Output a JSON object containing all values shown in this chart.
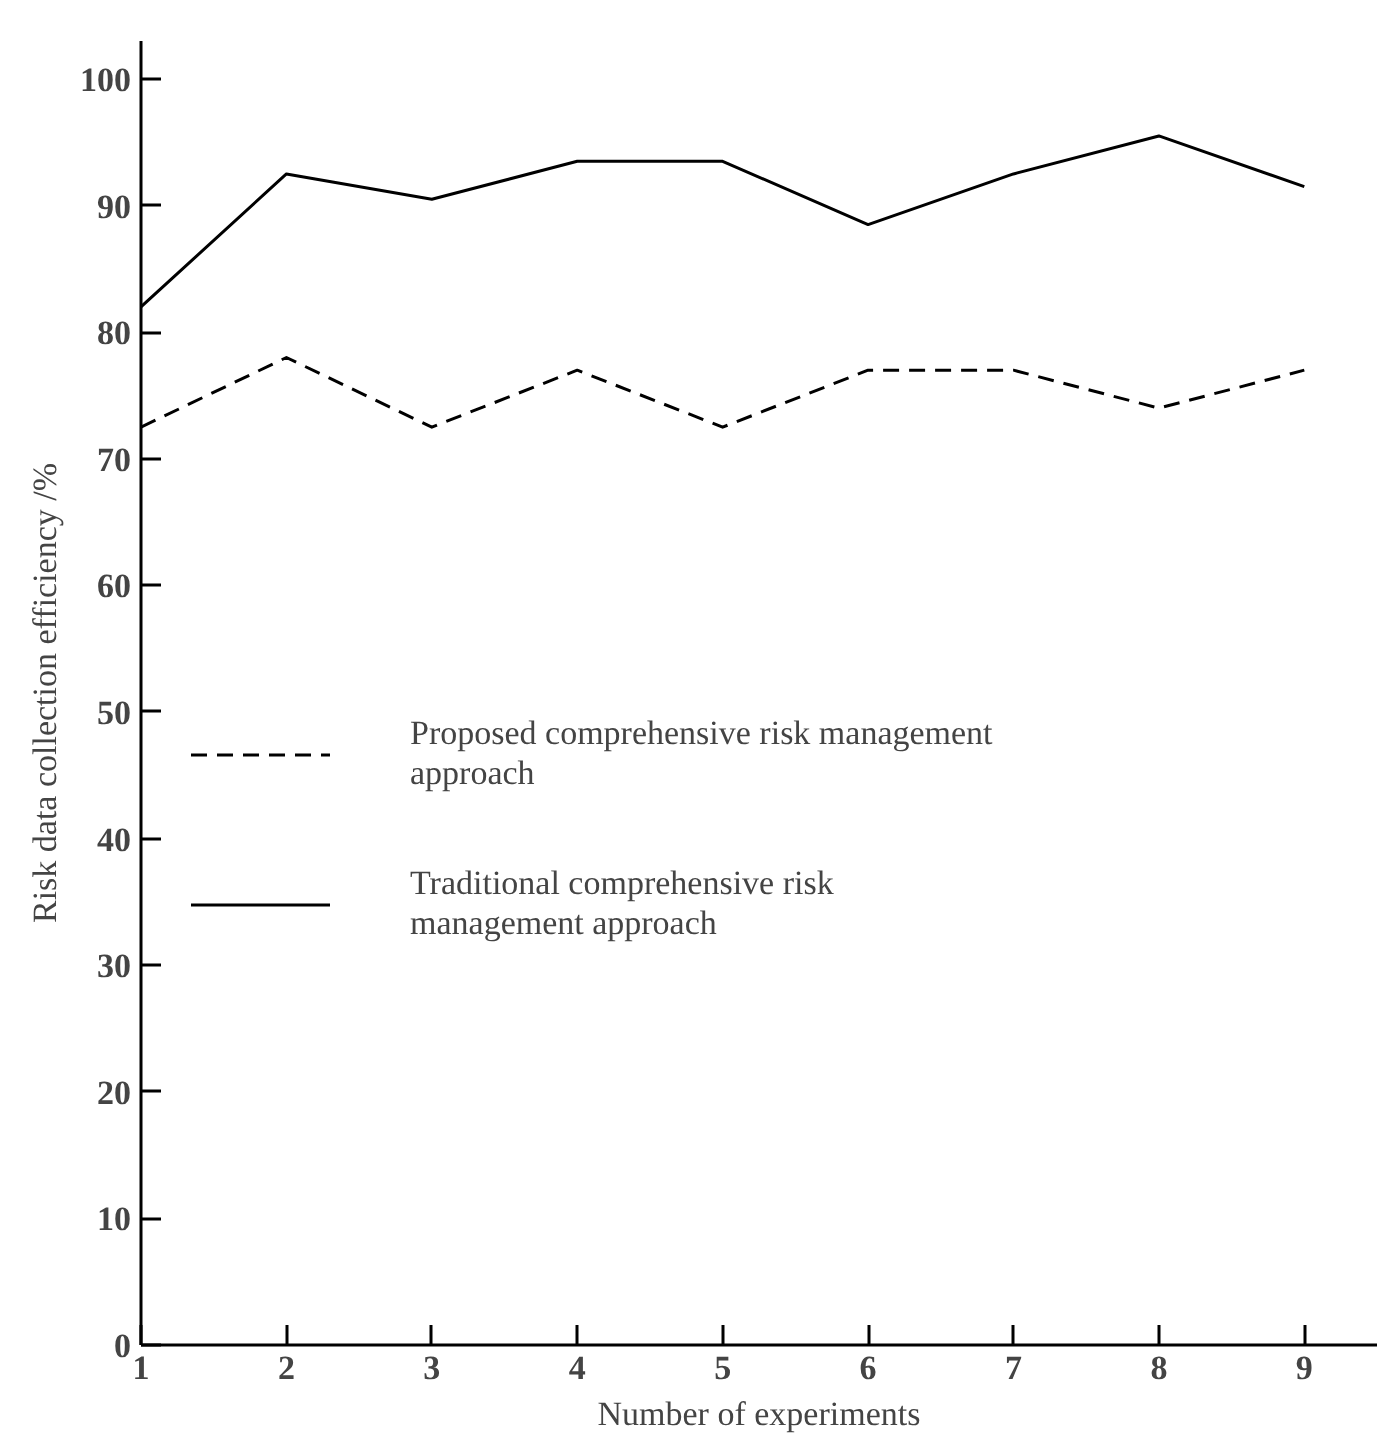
{
  "chart_data": {
    "type": "line",
    "xlabel": "Number of experiments",
    "ylabel": "Risk data collection efficiency /%",
    "x": [
      1,
      2,
      3,
      4,
      5,
      6,
      7,
      8,
      9
    ],
    "series": [
      {
        "name": "Proposed comprehensive risk management approach",
        "color": "#000000",
        "line_style": "dashed",
        "values": [
          72.5,
          78,
          72.5,
          77,
          72.5,
          77,
          77,
          74,
          77
        ]
      },
      {
        "name": "Traditional comprehensive risk management approach",
        "color": "#000000",
        "line_style": "solid",
        "values": [
          82,
          92.5,
          90.5,
          93.5,
          93.5,
          88.5,
          92.5,
          95.5,
          91.5
        ]
      }
    ],
    "xlim": [
      1,
      9.5
    ],
    "xticks": [
      1,
      2,
      3,
      4,
      5,
      6,
      7,
      8,
      9
    ],
    "ylim": [
      0,
      103
    ],
    "yticks": [
      0,
      10,
      20,
      30,
      40,
      50,
      60,
      70,
      80,
      90,
      100
    ],
    "grid": false,
    "legend": "left",
    "marker": "none"
  }
}
